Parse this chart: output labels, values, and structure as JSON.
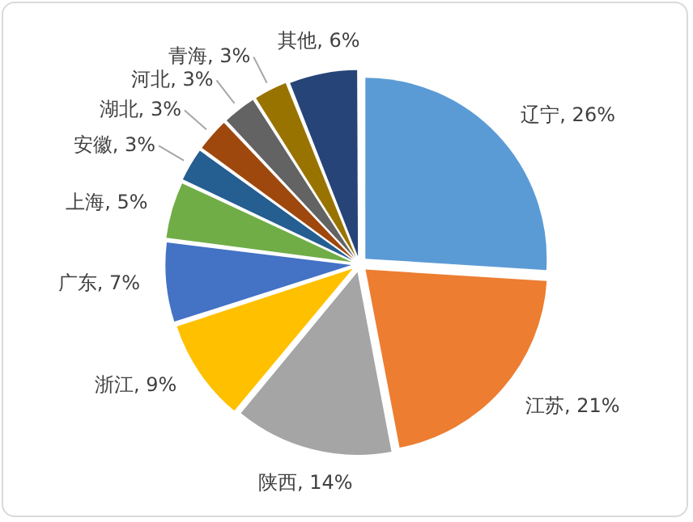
{
  "chart_data": {
    "type": "pie",
    "categories": [
      "辽宁",
      "江苏",
      "陕西",
      "浙江",
      "广东",
      "上海",
      "安徽",
      "湖北",
      "河北",
      "青海",
      "其他"
    ],
    "values": [
      26,
      21,
      14,
      9,
      7,
      5,
      3,
      3,
      3,
      3,
      6
    ],
    "value_labels": [
      "26%",
      "21%",
      "14%",
      "9%",
      "7%",
      "5%",
      "3%",
      "3%",
      "3%",
      "3%",
      "6%"
    ],
    "colors": [
      "#5b9bd5",
      "#ed7d31",
      "#a5a5a5",
      "#ffc000",
      "#4472c4",
      "#70ad47",
      "#255e91",
      "#9e480e",
      "#636363",
      "#997300",
      "#264478"
    ],
    "legend": false
  }
}
